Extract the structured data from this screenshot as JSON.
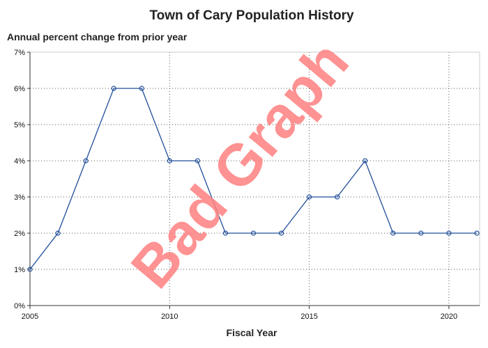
{
  "chart_data": {
    "type": "line",
    "title": "Town of Cary Population History",
    "subtitle": "Annual percent change from prior year",
    "xlabel": "Fiscal Year",
    "ylabel": "",
    "x": [
      2005,
      2006,
      2007,
      2008,
      2009,
      2010,
      2011,
      2012,
      2013,
      2014,
      2015,
      2016,
      2017,
      2018,
      2019,
      2020,
      2021
    ],
    "series": [
      {
        "values": [
          1,
          2,
          4,
          6,
          6,
          4,
          4,
          2,
          2,
          2,
          3,
          3,
          4,
          2,
          2,
          2,
          2
        ]
      }
    ],
    "xlim": [
      2005,
      2021.1
    ],
    "ylim": [
      0,
      7
    ],
    "x_ticks": [
      2005,
      2010,
      2015,
      2020
    ],
    "x_tick_labels": [
      "2005",
      "2010",
      "2015",
      "2020"
    ],
    "y_ticks": [
      0,
      1,
      2,
      3,
      4,
      5,
      6,
      7
    ],
    "y_tick_labels": [
      "0%",
      "1%",
      "2%",
      "3%",
      "4%",
      "5%",
      "6%",
      "7%"
    ],
    "grid": true,
    "line_color": "#1f4e9a",
    "grid_color": "#555555",
    "watermark": "Bad Graph",
    "watermark_color": "#ff8080"
  }
}
